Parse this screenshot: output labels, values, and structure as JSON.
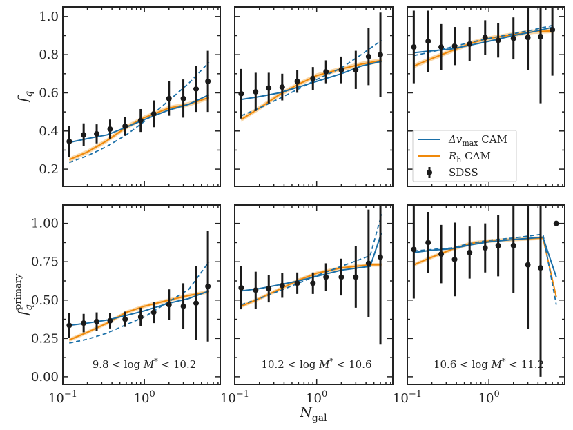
{
  "chart_data": {
    "type": "line",
    "layout": "2x3 grid of panels",
    "xscale": "log",
    "xlim": [
      0.1,
      8.5
    ],
    "xticks": [
      {
        "value": 0.1,
        "label": "10",
        "exp": "−1"
      },
      {
        "value": 1,
        "label": "10",
        "exp": "0"
      }
    ],
    "xlabel": "N",
    "xlabel_sub": "gal",
    "rows": [
      {
        "ylabel": "f",
        "ylabel_sub": "q",
        "ylabel_sup": "",
        "ylim": [
          0.11,
          1.05
        ],
        "yticks": [
          {
            "value": 0.2,
            "label": "0.2"
          },
          {
            "value": 0.4,
            "label": "0.4"
          },
          {
            "value": 0.6,
            "label": "0.6"
          },
          {
            "value": 0.8,
            "label": "0.8"
          },
          {
            "value": 1.0,
            "label": "1.0"
          }
        ]
      },
      {
        "ylabel": "f",
        "ylabel_sub": "q",
        "ylabel_sup": "primary",
        "ylim": [
          -0.05,
          1.12
        ],
        "yticks": [
          {
            "value": 0.0,
            "label": "0.00"
          },
          {
            "value": 0.25,
            "label": "0.25"
          },
          {
            "value": 0.5,
            "label": "0.50"
          },
          {
            "value": 0.75,
            "label": "0.75"
          },
          {
            "value": 1.0,
            "label": "1.00"
          }
        ]
      }
    ],
    "mass_bins": [
      {
        "lo": "9.8",
        "hi": "10.2"
      },
      {
        "lo": "10.2",
        "hi": "10.6"
      },
      {
        "lo": "10.6",
        "hi": "11.2"
      }
    ],
    "legend": {
      "location": "lower-right of top-right panel",
      "entries": [
        {
          "series": "dvmax",
          "text": "Δv",
          "sub": "max",
          "suffix": " CAM"
        },
        {
          "series": "rh",
          "text": "R",
          "sub": "h",
          "suffix": " CAM"
        },
        {
          "series": "sdss",
          "text": "SDSS",
          "sub": "",
          "suffix": ""
        }
      ]
    },
    "colors": {
      "dvmax": "#1a6fa8",
      "rh": "#f0890a",
      "rh_band": "#f7c98a",
      "sdss": "#1a1a1a"
    },
    "panels": [
      {
        "row": 0,
        "col": 0,
        "dvmax": {
          "x": [
            0.12,
            0.2,
            0.35,
            0.6,
            1.0,
            2.0,
            3.5,
            6.2
          ],
          "y": [
            0.34,
            0.36,
            0.38,
            0.42,
            0.46,
            0.51,
            0.54,
            0.59
          ]
        },
        "dvmax_dashed": {
          "x": [
            0.12,
            0.2,
            0.35,
            0.6,
            1.0,
            2.0,
            3.5,
            6.2
          ],
          "y": [
            0.235,
            0.27,
            0.32,
            0.38,
            0.45,
            0.56,
            0.65,
            0.76
          ]
        },
        "rh": {
          "x": [
            0.12,
            0.2,
            0.35,
            0.6,
            1.0,
            2.0,
            3.5,
            6.2
          ],
          "y": [
            0.25,
            0.29,
            0.35,
            0.42,
            0.47,
            0.52,
            0.54,
            0.575
          ]
        },
        "sdss": {
          "x": [
            0.12,
            0.18,
            0.26,
            0.38,
            0.58,
            0.9,
            1.3,
            2.0,
            3.0,
            4.3,
            6.0
          ],
          "y": [
            0.345,
            0.38,
            0.385,
            0.41,
            0.425,
            0.455,
            0.49,
            0.57,
            0.57,
            0.62,
            0.66
          ],
          "err": [
            0.08,
            0.06,
            0.05,
            0.05,
            0.05,
            0.06,
            0.07,
            0.09,
            0.1,
            0.12,
            0.16
          ]
        }
      },
      {
        "row": 0,
        "col": 1,
        "dvmax": {
          "x": [
            0.12,
            0.2,
            0.35,
            0.6,
            1.0,
            2.0,
            3.5,
            6.2
          ],
          "y": [
            0.565,
            0.58,
            0.6,
            0.63,
            0.66,
            0.7,
            0.74,
            0.765
          ]
        },
        "dvmax_dashed": {
          "x": [
            0.12,
            0.2,
            0.35,
            0.6,
            1.0,
            2.0,
            3.5,
            6.2
          ],
          "y": [
            0.48,
            0.52,
            0.57,
            0.62,
            0.67,
            0.73,
            0.8,
            0.875
          ]
        },
        "rh": {
          "x": [
            0.12,
            0.2,
            0.35,
            0.6,
            1.0,
            2.0,
            3.5,
            6.2
          ],
          "y": [
            0.46,
            0.52,
            0.59,
            0.645,
            0.69,
            0.725,
            0.75,
            0.77
          ]
        },
        "sdss": {
          "x": [
            0.12,
            0.18,
            0.26,
            0.38,
            0.58,
            0.9,
            1.3,
            2.0,
            3.0,
            4.3,
            6.0
          ],
          "y": [
            0.595,
            0.605,
            0.625,
            0.63,
            0.66,
            0.675,
            0.71,
            0.72,
            0.72,
            0.79,
            0.8
          ],
          "err": [
            0.13,
            0.1,
            0.08,
            0.07,
            0.06,
            0.06,
            0.06,
            0.07,
            0.1,
            0.15,
            0.22
          ]
        }
      },
      {
        "row": 0,
        "col": 2,
        "dvmax": {
          "x": [
            0.12,
            0.2,
            0.35,
            0.6,
            1.0,
            2.0,
            3.5,
            6.2
          ],
          "y": [
            0.81,
            0.82,
            0.83,
            0.85,
            0.87,
            0.9,
            0.92,
            0.945
          ]
        },
        "dvmax_dashed": {
          "x": [
            0.12,
            0.2,
            0.35,
            0.6,
            1.0,
            2.0,
            3.5,
            6.2
          ],
          "y": [
            0.795,
            0.815,
            0.84,
            0.865,
            0.885,
            0.91,
            0.93,
            0.955
          ]
        },
        "rh": {
          "x": [
            0.12,
            0.2,
            0.35,
            0.6,
            1.0,
            2.0,
            3.5,
            6.2
          ],
          "y": [
            0.74,
            0.78,
            0.82,
            0.86,
            0.885,
            0.905,
            0.92,
            0.925
          ]
        },
        "sdss": {
          "x": [
            0.12,
            0.18,
            0.26,
            0.38,
            0.58,
            0.9,
            1.3,
            2.0,
            3.0,
            4.3,
            6.0
          ],
          "y": [
            0.84,
            0.87,
            0.84,
            0.845,
            0.855,
            0.89,
            0.875,
            0.885,
            0.89,
            0.895,
            0.93
          ],
          "err": [
            0.19,
            0.16,
            0.12,
            0.1,
            0.09,
            0.09,
            0.09,
            0.11,
            0.17,
            0.35,
            0.24
          ]
        }
      },
      {
        "row": 1,
        "col": 0,
        "dvmax": {
          "x": [
            0.12,
            0.2,
            0.35,
            0.6,
            1.0,
            2.0,
            3.5,
            6.2
          ],
          "y": [
            0.335,
            0.35,
            0.37,
            0.4,
            0.43,
            0.48,
            0.51,
            0.56
          ]
        },
        "dvmax_dashed": {
          "x": [
            0.12,
            0.2,
            0.35,
            0.6,
            1.0,
            2.0,
            3.5,
            6.2
          ],
          "y": [
            0.22,
            0.245,
            0.285,
            0.34,
            0.39,
            0.49,
            0.57,
            0.75
          ]
        },
        "rh": {
          "x": [
            0.12,
            0.2,
            0.35,
            0.6,
            1.0,
            2.0,
            3.5,
            6.2
          ],
          "y": [
            0.24,
            0.29,
            0.35,
            0.42,
            0.46,
            0.5,
            0.53,
            0.555
          ]
        },
        "sdss": {
          "x": [
            0.12,
            0.18,
            0.26,
            0.38,
            0.58,
            0.9,
            1.3,
            2.0,
            3.0,
            4.3,
            6.0
          ],
          "y": [
            0.335,
            0.35,
            0.36,
            0.365,
            0.375,
            0.39,
            0.42,
            0.47,
            0.46,
            0.48,
            0.59
          ],
          "err": [
            0.08,
            0.06,
            0.06,
            0.05,
            0.05,
            0.06,
            0.07,
            0.1,
            0.15,
            0.24,
            0.36
          ]
        }
      },
      {
        "row": 1,
        "col": 1,
        "dvmax": {
          "x": [
            0.12,
            0.2,
            0.35,
            0.6,
            1.0,
            2.0,
            4.5,
            6.2
          ],
          "y": [
            0.56,
            0.575,
            0.6,
            0.625,
            0.655,
            0.695,
            0.72,
            0.94
          ]
        },
        "dvmax_dashed": {
          "x": [
            0.12,
            0.2,
            0.35,
            0.6,
            1.0,
            2.0,
            4.5,
            6.2
          ],
          "y": [
            0.47,
            0.51,
            0.56,
            0.61,
            0.66,
            0.72,
            0.79,
            1.06
          ]
        },
        "rh": {
          "x": [
            0.12,
            0.2,
            0.35,
            0.6,
            1.0,
            2.0,
            4.5,
            6.2
          ],
          "y": [
            0.46,
            0.51,
            0.57,
            0.63,
            0.675,
            0.71,
            0.73,
            0.73
          ]
        },
        "sdss": {
          "x": [
            0.12,
            0.18,
            0.26,
            0.38,
            0.58,
            0.9,
            1.3,
            2.0,
            3.0,
            4.3,
            6.0
          ],
          "y": [
            0.58,
            0.565,
            0.575,
            0.595,
            0.61,
            0.61,
            0.65,
            0.65,
            0.65,
            0.74,
            0.78
          ],
          "err": [
            0.14,
            0.12,
            0.09,
            0.08,
            0.07,
            0.07,
            0.09,
            0.12,
            0.2,
            0.35,
            0.57
          ]
        }
      },
      {
        "row": 1,
        "col": 2,
        "dvmax": {
          "x": [
            0.12,
            0.2,
            0.35,
            0.6,
            1.0,
            2.0,
            4.6,
            6.7
          ],
          "y": [
            0.81,
            0.825,
            0.835,
            0.86,
            0.88,
            0.895,
            0.91,
            0.65
          ]
        },
        "dvmax_dashed": {
          "x": [
            0.12,
            0.2,
            0.35,
            0.6,
            1.0,
            2.0,
            4.6,
            6.7
          ],
          "y": [
            0.82,
            0.83,
            0.84,
            0.87,
            0.89,
            0.905,
            0.93,
            0.47
          ]
        },
        "rh": {
          "x": [
            0.12,
            0.2,
            0.35,
            0.6,
            1.0,
            2.0,
            4.6,
            6.7
          ],
          "y": [
            0.73,
            0.78,
            0.83,
            0.87,
            0.885,
            0.895,
            0.905,
            0.52
          ]
        },
        "sdss": {
          "x": [
            0.12,
            0.18,
            0.26,
            0.38,
            0.58,
            0.9,
            1.3,
            2.0,
            3.0,
            4.3,
            6.7
          ],
          "y": [
            0.83,
            0.875,
            0.8,
            0.765,
            0.81,
            0.84,
            0.855,
            0.855,
            0.73,
            0.71,
            1.0
          ],
          "err": [
            0.32,
            0.2,
            0.19,
            0.24,
            0.17,
            0.16,
            0.2,
            0.31,
            0.42,
            0.71,
            0.0
          ]
        }
      }
    ]
  }
}
